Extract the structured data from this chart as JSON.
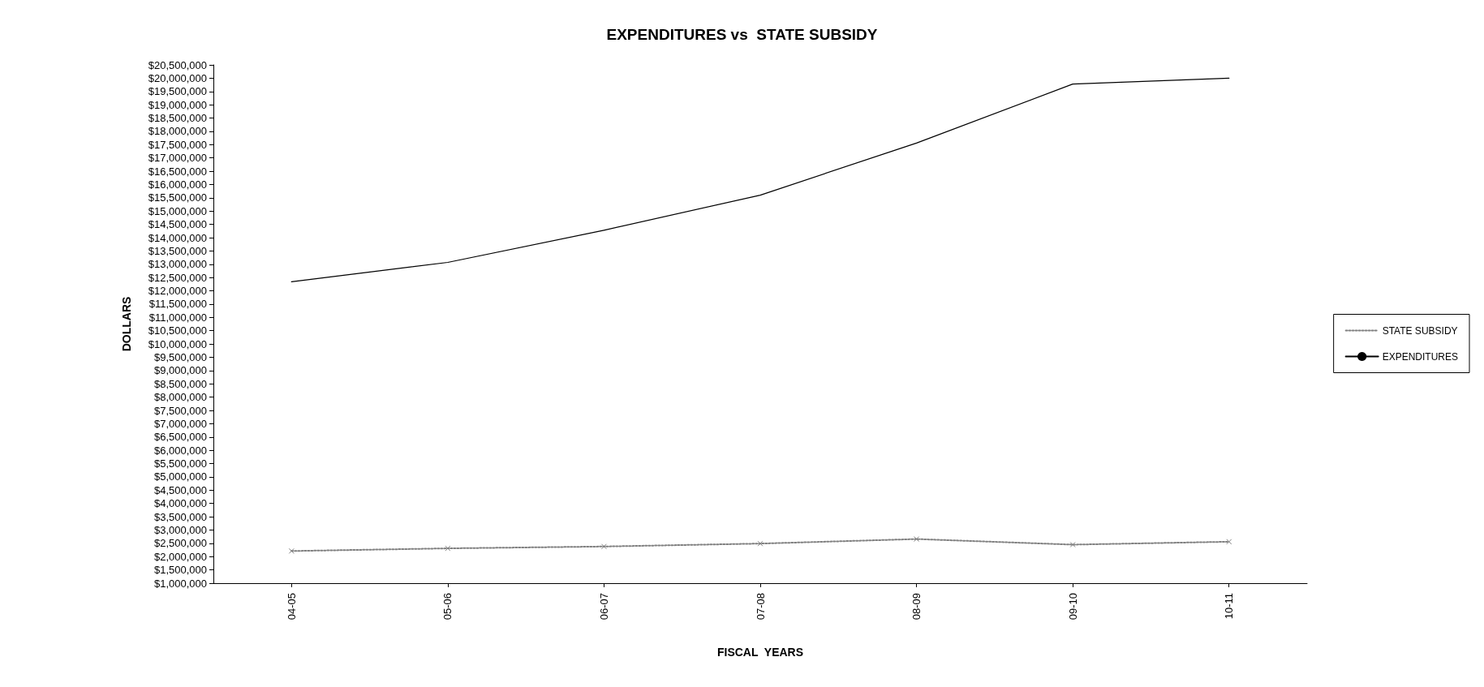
{
  "chart_data": {
    "type": "line",
    "title": "EXPENDITURES vs  STATE SUBSIDY",
    "xlabel": "FISCAL  YEARS",
    "ylabel": "DOLLARS",
    "categories": [
      "04-05",
      "05-06",
      "06-07",
      "07-08",
      "08-09",
      "09-10",
      "10-11"
    ],
    "series": [
      {
        "name": "STATE SUBSIDY",
        "color": "#808080",
        "line_style": "dotted",
        "marker": "cross",
        "values": [
          2210000,
          2310000,
          2380000,
          2490000,
          2660000,
          2450000,
          2560000
        ]
      },
      {
        "name": "EXPENDITURES",
        "color": "#000000",
        "line_style": "solid",
        "marker": "none",
        "values": [
          12340000,
          13070000,
          14280000,
          15600000,
          17560000,
          19780000,
          20000000
        ]
      }
    ],
    "ylim": [
      1000000,
      20500000
    ],
    "yticks": [
      {
        "value": 1000000,
        "label": "$1,000,000"
      },
      {
        "value": 1500000,
        "label": "$1,500,000"
      },
      {
        "value": 2000000,
        "label": "$2,000,000"
      },
      {
        "value": 2500000,
        "label": "$2,500,000"
      },
      {
        "value": 3000000,
        "label": "$3,000,000"
      },
      {
        "value": 3500000,
        "label": "$3,500,000"
      },
      {
        "value": 4000000,
        "label": "$4,000,000"
      },
      {
        "value": 4500000,
        "label": "$4,500,000"
      },
      {
        "value": 5000000,
        "label": "$5,000,000"
      },
      {
        "value": 5500000,
        "label": "$5,500,000"
      },
      {
        "value": 6000000,
        "label": "$6,000,000"
      },
      {
        "value": 6500000,
        "label": "$6,500,000"
      },
      {
        "value": 7000000,
        "label": "$7,000,000"
      },
      {
        "value": 7500000,
        "label": "$7,500,000"
      },
      {
        "value": 8000000,
        "label": "$8,000,000"
      },
      {
        "value": 8500000,
        "label": "$8,500,000"
      },
      {
        "value": 9000000,
        "label": "$9,000,000"
      },
      {
        "value": 9500000,
        "label": "$9,500,000"
      },
      {
        "value": 10000000,
        "label": "$10,000,000"
      },
      {
        "value": 10500000,
        "label": "$10,500,000"
      },
      {
        "value": 11000000,
        "label": "$11,000,000"
      },
      {
        "value": 11500000,
        "label": "$11,500,000"
      },
      {
        "value": 12000000,
        "label": "$12,000,000"
      },
      {
        "value": 12500000,
        "label": "$12,500,000"
      },
      {
        "value": 13000000,
        "label": "$13,000,000"
      },
      {
        "value": 13500000,
        "label": "$13,500,000"
      },
      {
        "value": 14000000,
        "label": "$14,000,000"
      },
      {
        "value": 14500000,
        "label": "$14,500,000"
      },
      {
        "value": 15000000,
        "label": "$15,000,000"
      },
      {
        "value": 15500000,
        "label": "$15,500,000"
      },
      {
        "value": 16000000,
        "label": "$16,000,000"
      },
      {
        "value": 16500000,
        "label": "$16,500,000"
      },
      {
        "value": 17000000,
        "label": "$17,000,000"
      },
      {
        "value": 17500000,
        "label": "$17,500,000"
      },
      {
        "value": 18000000,
        "label": "$18,000,000"
      },
      {
        "value": 18500000,
        "label": "$18,500,000"
      },
      {
        "value": 19000000,
        "label": "$19,000,000"
      },
      {
        "value": 19500000,
        "label": "$19,500,000"
      },
      {
        "value": 20000000,
        "label": "$20,000,000"
      },
      {
        "value": 20500000,
        "label": "$20,500,000"
      }
    ],
    "grid": false,
    "legend": "right"
  }
}
